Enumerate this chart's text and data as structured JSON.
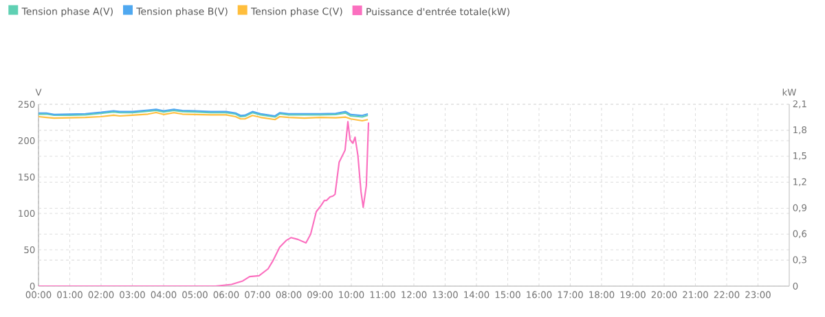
{
  "chart_data": {
    "type": "line",
    "ylabel": "V",
    "y2label": "kW",
    "legend": "top left",
    "grid": true,
    "xlim": [
      0,
      24
    ],
    "xticks": [
      {
        "value": 0,
        "label": "00:00"
      },
      {
        "value": 1,
        "label": "01:00"
      },
      {
        "value": 2,
        "label": "02:00"
      },
      {
        "value": 3,
        "label": "03:00"
      },
      {
        "value": 4,
        "label": "04:00"
      },
      {
        "value": 5,
        "label": "05:00"
      },
      {
        "value": 6,
        "label": "06:00"
      },
      {
        "value": 7,
        "label": "07:00"
      },
      {
        "value": 8,
        "label": "08:00"
      },
      {
        "value": 9,
        "label": "09:00"
      },
      {
        "value": 10,
        "label": "10:00"
      },
      {
        "value": 11,
        "label": "11:00"
      },
      {
        "value": 12,
        "label": "12:00"
      },
      {
        "value": 13,
        "label": "13:00"
      },
      {
        "value": 14,
        "label": "14:00"
      },
      {
        "value": 15,
        "label": "15:00"
      },
      {
        "value": 16,
        "label": "16:00"
      },
      {
        "value": 17,
        "label": "17:00"
      },
      {
        "value": 18,
        "label": "18:00"
      },
      {
        "value": 19,
        "label": "19:00"
      },
      {
        "value": 20,
        "label": "20:00"
      },
      {
        "value": 21,
        "label": "21:00"
      },
      {
        "value": 22,
        "label": "22:00"
      },
      {
        "value": 23,
        "label": "23:00"
      }
    ],
    "ylim": [
      0,
      250
    ],
    "yticks": [
      0,
      50,
      100,
      150,
      200,
      250
    ],
    "y2lim": [
      0,
      2.1
    ],
    "y2ticks": [
      {
        "value": 0,
        "label": "0"
      },
      {
        "value": 0.3,
        "label": "0,3"
      },
      {
        "value": 0.6,
        "label": "0,6"
      },
      {
        "value": 0.9,
        "label": "0,9"
      },
      {
        "value": 1.2,
        "label": "1,2"
      },
      {
        "value": 1.5,
        "label": "1,5"
      },
      {
        "value": 1.8,
        "label": "1,8"
      },
      {
        "value": 2.1,
        "label": "2,1"
      }
    ],
    "series": [
      {
        "name": "Tension phase A(V)",
        "color": "#5fd0b3",
        "x": [
          0,
          0.25,
          0.5,
          1,
          1.5,
          2,
          2.4,
          2.6,
          3,
          3.5,
          3.76,
          4,
          4.33,
          4.6,
          5,
          5.5,
          6,
          6.3,
          6.46,
          6.6,
          6.84,
          7.1,
          7.56,
          7.71,
          8,
          8.5,
          9,
          9.5,
          9.82,
          9.98,
          10.35,
          10.53
        ],
        "values": [
          236.5,
          236.5,
          235,
          235,
          235.5,
          237.5,
          239.5,
          238.5,
          238.5,
          240.5,
          241.5,
          239.5,
          241.5,
          240,
          239.5,
          238.5,
          238.5,
          236.5,
          233,
          233.5,
          238.5,
          235.5,
          232.5,
          237,
          235.5,
          235.5,
          235.5,
          236,
          238,
          234,
          232.5,
          235
        ]
      },
      {
        "name": "Tension phase B(V)",
        "color": "#4fa8f0",
        "x": [
          0,
          0.25,
          0.5,
          1,
          1.5,
          2,
          2.4,
          2.6,
          3,
          3.5,
          3.76,
          4,
          4.33,
          4.6,
          5,
          5.5,
          6,
          6.3,
          6.46,
          6.6,
          6.84,
          7.1,
          7.56,
          7.71,
          8,
          8.5,
          9,
          9.5,
          9.82,
          9.98,
          10.35,
          10.53
        ],
        "values": [
          238,
          238,
          236,
          236.5,
          237,
          239,
          241,
          240,
          240,
          242,
          243,
          241,
          243,
          241.5,
          241,
          240,
          240,
          238,
          234.6,
          235,
          240,
          237,
          234,
          238.4,
          237,
          237,
          237,
          237.5,
          240,
          236,
          234.6,
          236.8
        ]
      },
      {
        "name": "Tension phase C(V)",
        "color": "#ffbe3c",
        "x": [
          0,
          0.25,
          0.5,
          1,
          1.5,
          2,
          2.4,
          2.6,
          3,
          3.5,
          3.76,
          4,
          4.33,
          4.6,
          5,
          5.5,
          6,
          6.3,
          6.46,
          6.6,
          6.84,
          7.1,
          7.56,
          7.71,
          8,
          8.5,
          9,
          9.5,
          9.82,
          9.98,
          10.35,
          10.53
        ],
        "values": [
          233,
          232,
          231,
          231.5,
          232,
          233,
          235,
          234,
          235,
          236.5,
          238.7,
          236,
          238.5,
          236.5,
          236,
          235.5,
          235.5,
          233,
          229.9,
          230,
          234.6,
          232,
          229,
          233,
          232,
          231,
          232,
          231.5,
          232.4,
          230,
          227.4,
          229
        ]
      },
      {
        "name": "Puissance d'entrée totale(kW)",
        "color": "#fb6fbf",
        "axis": "y2",
        "x": [
          0,
          1,
          2,
          3,
          4,
          4.92,
          5.66,
          6.17,
          6.53,
          6.75,
          7.05,
          7.34,
          7.49,
          7.71,
          7.93,
          8.07,
          8.29,
          8.55,
          8.7,
          8.88,
          9.03,
          9.14,
          9.21,
          9.32,
          9.41,
          9.48,
          9.61,
          9.8,
          9.89,
          9.96,
          10.05,
          10.12,
          10.21,
          10.31,
          10.38,
          10.48,
          10.55
        ],
        "values": [
          0,
          0,
          0,
          0,
          0,
          0,
          0,
          0.02,
          0.06,
          0.11,
          0.12,
          0.2,
          0.29,
          0.45,
          0.53,
          0.56,
          0.54,
          0.5,
          0.6,
          0.86,
          0.93,
          0.99,
          0.99,
          1.03,
          1.04,
          1.06,
          1.43,
          1.57,
          1.9,
          1.69,
          1.65,
          1.72,
          1.51,
          1.09,
          0.91,
          1.16,
          1.89
        ]
      }
    ]
  }
}
